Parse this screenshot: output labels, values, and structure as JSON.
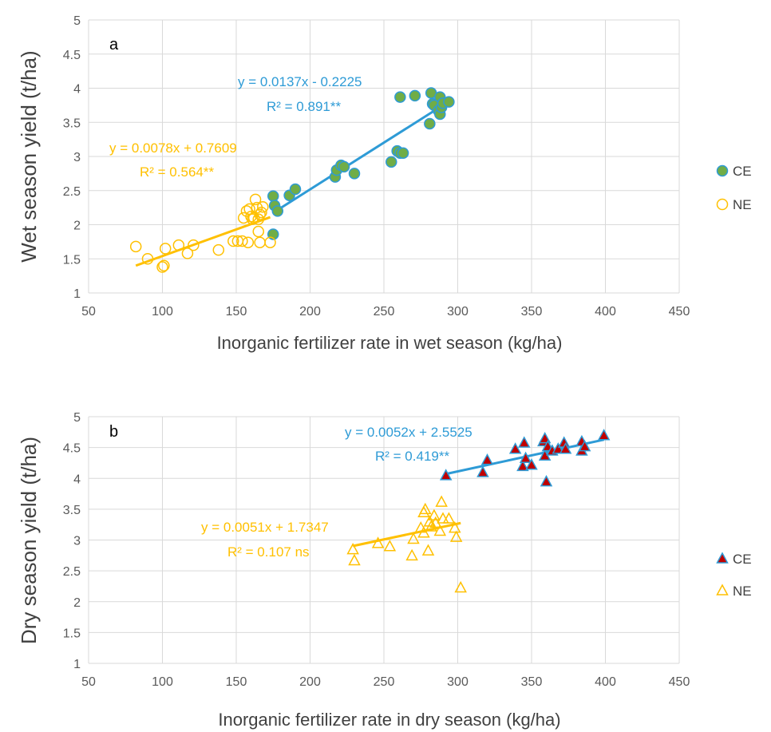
{
  "chart_data": [
    {
      "type": "scatter",
      "panel_label": "a",
      "xlabel": "Inorganic fertilizer rate in wet season (kg/ha)",
      "ylabel": "Wet season yield (t/ha)",
      "xlim": [
        50,
        450
      ],
      "ylim": [
        1,
        5
      ],
      "x_ticks": [
        "50",
        "100",
        "150",
        "200",
        "250",
        "300",
        "350",
        "400",
        "450"
      ],
      "y_ticks": [
        "1",
        "1.5",
        "2",
        "2.5",
        "3",
        "3.5",
        "4",
        "4.5",
        "5"
      ],
      "grid": true,
      "legend_position": "right",
      "series": [
        {
          "name": "CE",
          "marker": "circle",
          "fill": "#70AD47",
          "stroke": "#2E9BD6",
          "points": [
            [
              175,
              1.86
            ],
            [
              175,
              2.42
            ],
            [
              176,
              2.28
            ],
            [
              178,
              2.2
            ],
            [
              186,
              2.43
            ],
            [
              190,
              2.52
            ],
            [
              217,
              2.7
            ],
            [
              218,
              2.8
            ],
            [
              221,
              2.87
            ],
            [
              223,
              2.85
            ],
            [
              230,
              2.75
            ],
            [
              255,
              2.92
            ],
            [
              259,
              3.08
            ],
            [
              261,
              3.05
            ],
            [
              263,
              3.05
            ],
            [
              261,
              3.87
            ],
            [
              271,
              3.89
            ],
            [
              281,
              3.48
            ],
            [
              282,
              3.93
            ],
            [
              283,
              3.77
            ],
            [
              284,
              3.75
            ],
            [
              287,
              3.67
            ],
            [
              288,
              3.62
            ],
            [
              289,
              3.72
            ],
            [
              288,
              3.87
            ],
            [
              290,
              3.78
            ],
            [
              294,
              3.8
            ]
          ],
          "trendline": {
            "slope": 0.0137,
            "intercept": -0.2225,
            "x_range": [
              175,
              294
            ],
            "color": "#2E9BD6"
          },
          "equation": "y = 0.0137x - 0.2225",
          "r2": "R² = 0.891**"
        },
        {
          "name": "NE",
          "marker": "circle-open",
          "stroke": "#FFC000",
          "points": [
            [
              82,
              1.68
            ],
            [
              90,
              1.5
            ],
            [
              100,
              1.38
            ],
            [
              101,
              1.4
            ],
            [
              102,
              1.65
            ],
            [
              111,
              1.7
            ],
            [
              117,
              1.58
            ],
            [
              121,
              1.7
            ],
            [
              138,
              1.63
            ],
            [
              148,
              1.76
            ],
            [
              151,
              1.76
            ],
            [
              154,
              1.76
            ],
            [
              155,
              2.1
            ],
            [
              157,
              2.2
            ],
            [
              158,
              1.74
            ],
            [
              159,
              2.23
            ],
            [
              160,
              2.12
            ],
            [
              161,
              2.08
            ],
            [
              162,
              2.1
            ],
            [
              163,
              2.37
            ],
            [
              164,
              2.25
            ],
            [
              165,
              1.9
            ],
            [
              165,
              2.08
            ],
            [
              166,
              2.15
            ],
            [
              166,
              1.74
            ],
            [
              167,
              2.18
            ],
            [
              168,
              2.26
            ],
            [
              173,
              1.74
            ]
          ],
          "trendline": {
            "slope": 0.0078,
            "intercept": 0.7609,
            "x_range": [
              82,
              173
            ],
            "color": "#FFC000"
          },
          "equation": "y = 0.0078x + 0.7609",
          "r2": "R² = 0.564**"
        }
      ]
    },
    {
      "type": "scatter",
      "panel_label": "b",
      "xlabel": "Inorganic fertilizer rate in dry season (kg/ha)",
      "ylabel": "Dry season yield (t/ha)",
      "xlim": [
        50,
        450
      ],
      "ylim": [
        1,
        5
      ],
      "x_ticks": [
        "50",
        "100",
        "150",
        "200",
        "250",
        "300",
        "350",
        "400",
        "450"
      ],
      "y_ticks": [
        "1",
        "1.5",
        "2",
        "2.5",
        "3",
        "3.5",
        "4",
        "4.5",
        "5"
      ],
      "grid": true,
      "legend_position": "right",
      "series": [
        {
          "name": "CE",
          "marker": "triangle",
          "fill": "#C00000",
          "stroke": "#2E9BD6",
          "points": [
            [
              292,
              4.05
            ],
            [
              317,
              4.1
            ],
            [
              320,
              4.3
            ],
            [
              339,
              4.48
            ],
            [
              344,
              4.2
            ],
            [
              345,
              4.58
            ],
            [
              346,
              4.33
            ],
            [
              350,
              4.22
            ],
            [
              358,
              4.6
            ],
            [
              359,
              4.65
            ],
            [
              359,
              4.37
            ],
            [
              360,
              3.95
            ],
            [
              361,
              4.52
            ],
            [
              364,
              4.45
            ],
            [
              368,
              4.48
            ],
            [
              372,
              4.58
            ],
            [
              373,
              4.48
            ],
            [
              384,
              4.45
            ],
            [
              384,
              4.6
            ],
            [
              386,
              4.52
            ],
            [
              399,
              4.7
            ]
          ],
          "trendline": {
            "slope": 0.0052,
            "intercept": 2.5525,
            "x_range": [
              292,
              399
            ],
            "color": "#2E9BD6"
          },
          "equation": "y = 0.0052x + 2.5525",
          "r2": "R² = 0.419**"
        },
        {
          "name": "NE",
          "marker": "triangle-open",
          "stroke": "#FFC000",
          "points": [
            [
              229,
              2.85
            ],
            [
              230,
              2.67
            ],
            [
              246,
              2.95
            ],
            [
              254,
              2.9
            ],
            [
              269,
              2.75
            ],
            [
              270,
              3.02
            ],
            [
              275,
              3.2
            ],
            [
              277,
              3.45
            ],
            [
              277,
              3.12
            ],
            [
              278,
              3.5
            ],
            [
              280,
              2.83
            ],
            [
              281,
              3.3
            ],
            [
              282,
              3.22
            ],
            [
              284,
              3.4
            ],
            [
              285,
              3.28
            ],
            [
              288,
              3.15
            ],
            [
              289,
              3.62
            ],
            [
              290,
              3.35
            ],
            [
              294,
              3.35
            ],
            [
              298,
              3.2
            ],
            [
              299,
              3.05
            ],
            [
              302,
              2.23
            ]
          ],
          "trendline": {
            "slope": 0.0051,
            "intercept": 1.7347,
            "x_range": [
              229,
              302
            ],
            "color": "#FFC000"
          },
          "equation": "y = 0.0051x + 1.7347",
          "r2": "R² = 0.107 ns"
        }
      ]
    }
  ]
}
